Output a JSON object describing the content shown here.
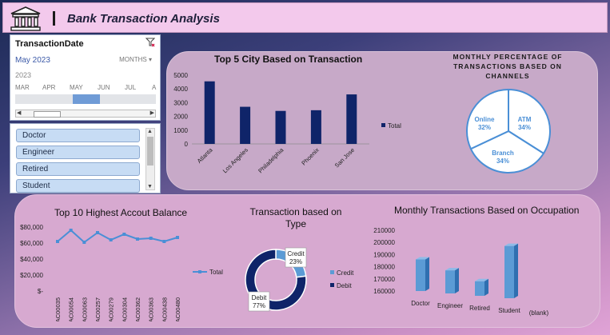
{
  "header": {
    "title": "Bank Transaction Analysis",
    "icon": "bank-icon"
  },
  "timeline": {
    "field": "TransactionDate",
    "selected_range": "May 2023",
    "level": "MONTHS",
    "year": "2023",
    "months": [
      "MAR",
      "APR",
      "MAY",
      "JUN",
      "JUL",
      "A"
    ]
  },
  "occupation_slicer": {
    "items": [
      "Doctor",
      "Engineer",
      "Retired",
      "Student"
    ]
  },
  "chart_data": [
    {
      "type": "bar",
      "title": "Top 5 City Based on Transaction",
      "categories": [
        "Atlanta",
        "Los Angeles",
        "Philadelphia",
        "Phoenix",
        "San Jose"
      ],
      "values": [
        4550,
        2700,
        2400,
        2450,
        3600
      ],
      "yticks": [
        "0",
        "500",
        "1000",
        "1500",
        "2000",
        "2500",
        "3000",
        "3500",
        "4000",
        "4500",
        "5000"
      ],
      "ylim": [
        0,
        5000
      ],
      "legend": "Total",
      "color": "#0f2469"
    },
    {
      "type": "pie",
      "title": "MONTHLY PERCENTAGE OF TRANSACTIONS BASED ON CHANNELS",
      "slices": [
        {
          "label": "ATM",
          "value": 34,
          "text": "34%"
        },
        {
          "label": "Branch",
          "value": 34,
          "text": "34%"
        },
        {
          "label": "Online",
          "value": 32,
          "text": "32%"
        }
      ],
      "color": "#4a8fd6"
    },
    {
      "type": "line",
      "title": "Top 10 Highest Accout Balance",
      "categories": [
        "AC00035",
        "AC00054",
        "AC00063",
        "AC00257",
        "AC00279",
        "AC00304",
        "AC00362",
        "AC00363",
        "AC00438",
        "AC00480"
      ],
      "values": [
        62000,
        76000,
        61000,
        73000,
        64000,
        71000,
        65000,
        66000,
        62000,
        67000
      ],
      "yticks": [
        "$-",
        "$20,000",
        "$40,000",
        "$60,000",
        "$80,000"
      ],
      "ylim": [
        0,
        80000
      ],
      "legend": "Total",
      "color": "#4a8fd6"
    },
    {
      "type": "pie",
      "title": "Transaction based on Type",
      "slices": [
        {
          "label": "Credit",
          "value": 23,
          "text": "23%"
        },
        {
          "label": "Debit",
          "value": 77,
          "text": "77%"
        }
      ],
      "legend": [
        "Credit",
        "Debit"
      ],
      "colors": {
        "Credit": "#5b9bd5",
        "Debit": "#0f2469"
      }
    },
    {
      "type": "bar",
      "title": "Monthly Transactions Based on Occupation",
      "categories": [
        "Doctor",
        "Engineer",
        "Retired",
        "Student",
        "(blank)"
      ],
      "values": [
        186000,
        179000,
        172000,
        203000,
        null
      ],
      "yticks": [
        "160000",
        "170000",
        "180000",
        "190000",
        "200000",
        "210000"
      ],
      "ylim": [
        160000,
        210000
      ],
      "color": "#5b9bd5"
    }
  ]
}
